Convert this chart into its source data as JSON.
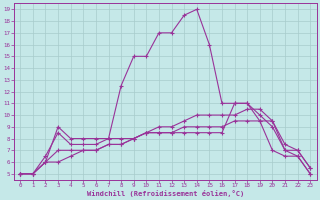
{
  "xlabel": "Windchill (Refroidissement éolien,°C)",
  "bg_color": "#c5e8e8",
  "grid_color": "#a8cccc",
  "line_color": "#993399",
  "xlim": [
    -0.5,
    23.5
  ],
  "ylim": [
    4.5,
    19.5
  ],
  "xticks": [
    0,
    1,
    2,
    3,
    4,
    5,
    6,
    7,
    8,
    9,
    10,
    11,
    12,
    13,
    14,
    15,
    16,
    17,
    18,
    19,
    20,
    21,
    22,
    23
  ],
  "yticks": [
    5,
    6,
    7,
    8,
    9,
    10,
    11,
    12,
    13,
    14,
    15,
    16,
    17,
    18,
    19
  ],
  "curves": [
    [
      0,
      5,
      1,
      5,
      2,
      6,
      3,
      9,
      4,
      8,
      5,
      8,
      6,
      8,
      7,
      8,
      8,
      12.5,
      9,
      15,
      10,
      15,
      11,
      17,
      12,
      17,
      13,
      18.5,
      14,
      19,
      15,
      16,
      16,
      11,
      17,
      11,
      18,
      11,
      19,
      9.5,
      20,
      7,
      21,
      6.5,
      22,
      6.5,
      23,
      5
    ],
    [
      0,
      5,
      1,
      5,
      2,
      6.5,
      3,
      8.5,
      4,
      7.5,
      5,
      7.5,
      6,
      7.5,
      7,
      8,
      8,
      8,
      9,
      8,
      10,
      8.5,
      11,
      8.5,
      12,
      8.5,
      13,
      8.5,
      14,
      8.5,
      15,
      8.5,
      16,
      8.5,
      17,
      11,
      18,
      11,
      19,
      10,
      20,
      9,
      21,
      7,
      22,
      7,
      23,
      5.5
    ],
    [
      0,
      5,
      1,
      5,
      2,
      6,
      3,
      6,
      4,
      6.5,
      5,
      7,
      6,
      7,
      7,
      7.5,
      8,
      7.5,
      9,
      8,
      10,
      8.5,
      11,
      9,
      12,
      9,
      13,
      9.5,
      14,
      10,
      15,
      10,
      16,
      10,
      17,
      10,
      18,
      10.5,
      19,
      10.5,
      20,
      9.5,
      21,
      7,
      22,
      6.5,
      23,
      5
    ],
    [
      0,
      5,
      1,
      5,
      2,
      6,
      3,
      7,
      4,
      7,
      5,
      7,
      6,
      7,
      7,
      7.5,
      8,
      7.5,
      9,
      8,
      10,
      8.5,
      11,
      8.5,
      12,
      8.5,
      13,
      9,
      14,
      9,
      15,
      9,
      16,
      9,
      17,
      9.5,
      18,
      9.5,
      19,
      9.5,
      20,
      9.5,
      21,
      7.5,
      22,
      7,
      23,
      5.5
    ]
  ],
  "marker": "+",
  "markersize": 3.5,
  "linewidth": 0.8
}
